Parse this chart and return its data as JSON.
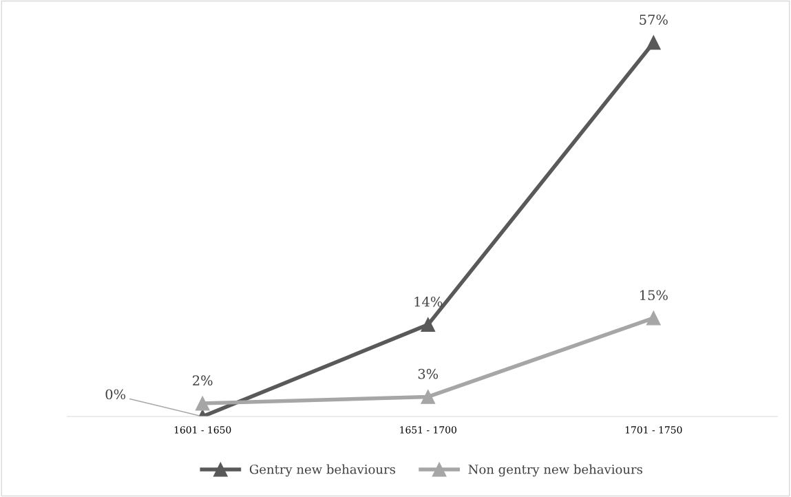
{
  "chart_data": {
    "type": "line",
    "categories": [
      "1601 - 1650",
      "1651 - 1700",
      "1701 - 1750"
    ],
    "series": [
      {
        "name": "Gentry new behaviours",
        "color": "#595959",
        "values": [
          0,
          14,
          57
        ],
        "value_labels": [
          "0%",
          "14%",
          "57%"
        ]
      },
      {
        "name": "Non gentry new behaviours",
        "color": "#a6a6a6",
        "values": [
          2,
          3,
          15
        ],
        "value_labels": [
          "2%",
          "3%",
          "15%"
        ]
      }
    ],
    "marker": "triangle",
    "legend": "bottom",
    "grid": false
  }
}
